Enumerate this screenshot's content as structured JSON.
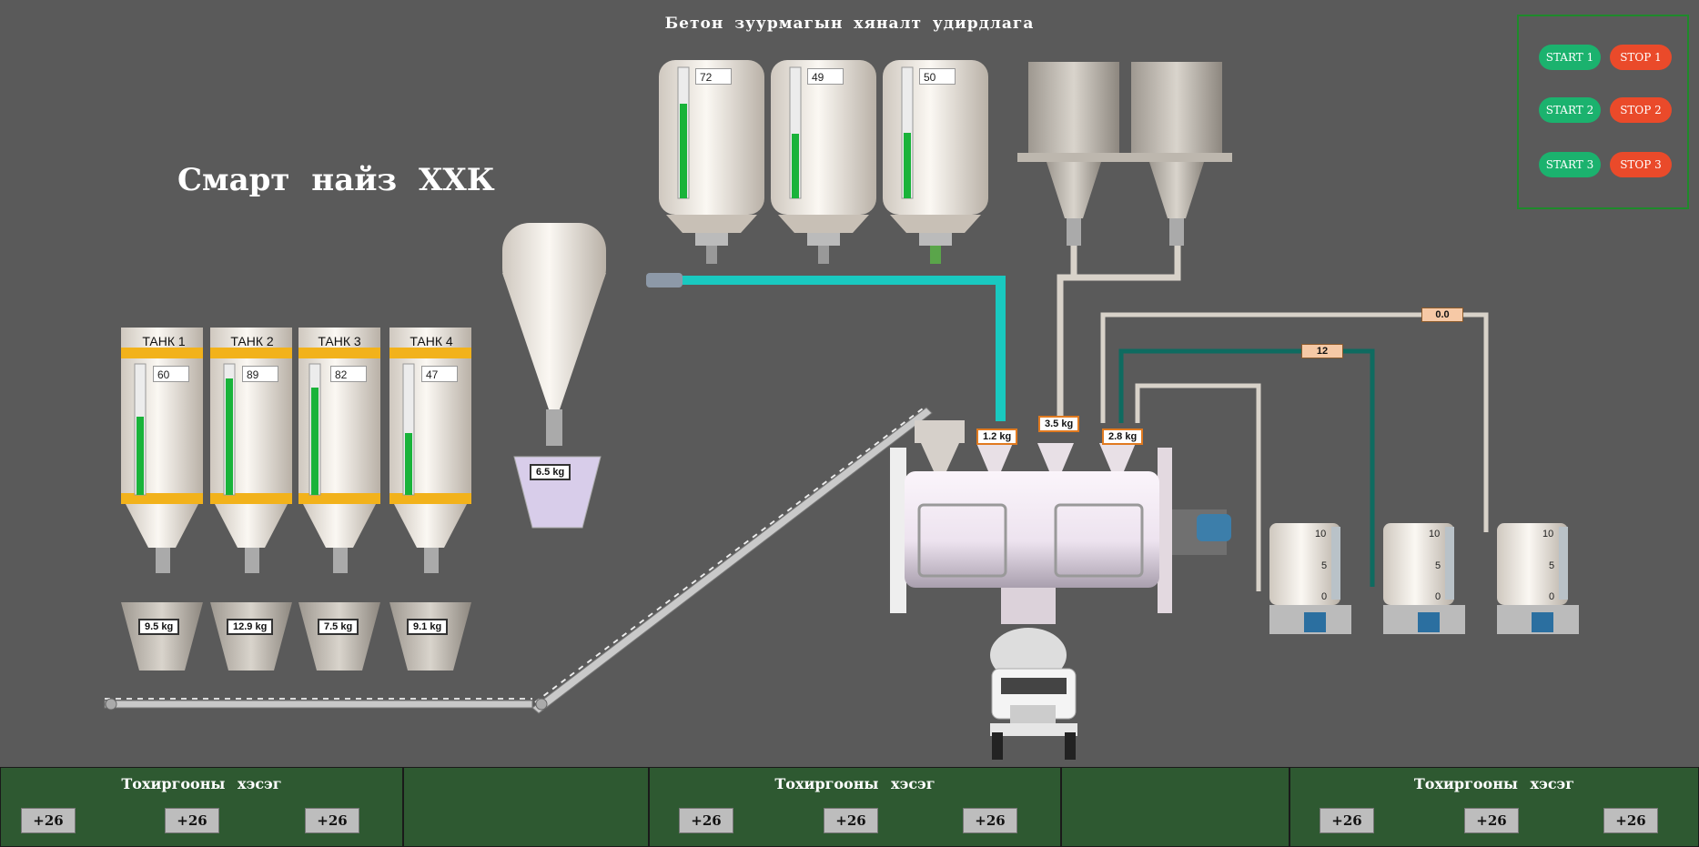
{
  "header": {
    "title": "Бетон зуурмагын хяналт удирдлага",
    "company": "Смарт найз ХХК"
  },
  "controls": {
    "start1": "START 1",
    "stop1": "STOP 1",
    "start2": "START 2",
    "stop2": "STOP 2",
    "start3": "START 3",
    "stop3": "STOP 3"
  },
  "cement_silos": {
    "levels": [
      "72",
      "49",
      "50"
    ],
    "fill": [
      0.72,
      0.49,
      0.5
    ]
  },
  "tanks": {
    "labels": [
      "ТАНК 1",
      "ТАНК 2",
      "ТАНК 3",
      "ТАНК 4"
    ],
    "levels": [
      "60",
      "89",
      "82",
      "47"
    ],
    "fill": [
      0.6,
      0.89,
      0.82,
      0.47
    ],
    "weights": [
      "9.5 kg",
      "12.9 kg",
      "7.5 kg",
      "9.1 kg"
    ]
  },
  "hopper_weight": "6.5 kg",
  "mixer_weights": [
    "1.2 kg",
    "3.5 kg",
    "2.8 kg"
  ],
  "pipe_values": [
    "0.0",
    "12"
  ],
  "water_tank_scale": [
    "10",
    "5",
    "0"
  ],
  "delivery": {
    "title": "Тохиргооны хэсэг",
    "button": "+26"
  },
  "colors": {
    "level_green": "#19b33a",
    "pipe_cyan": "#19c9c0",
    "pipe_teal": "#0f6b60",
    "panel_green": "#2e5931",
    "start": "#1bb26e",
    "stop": "#ea4a2a"
  }
}
